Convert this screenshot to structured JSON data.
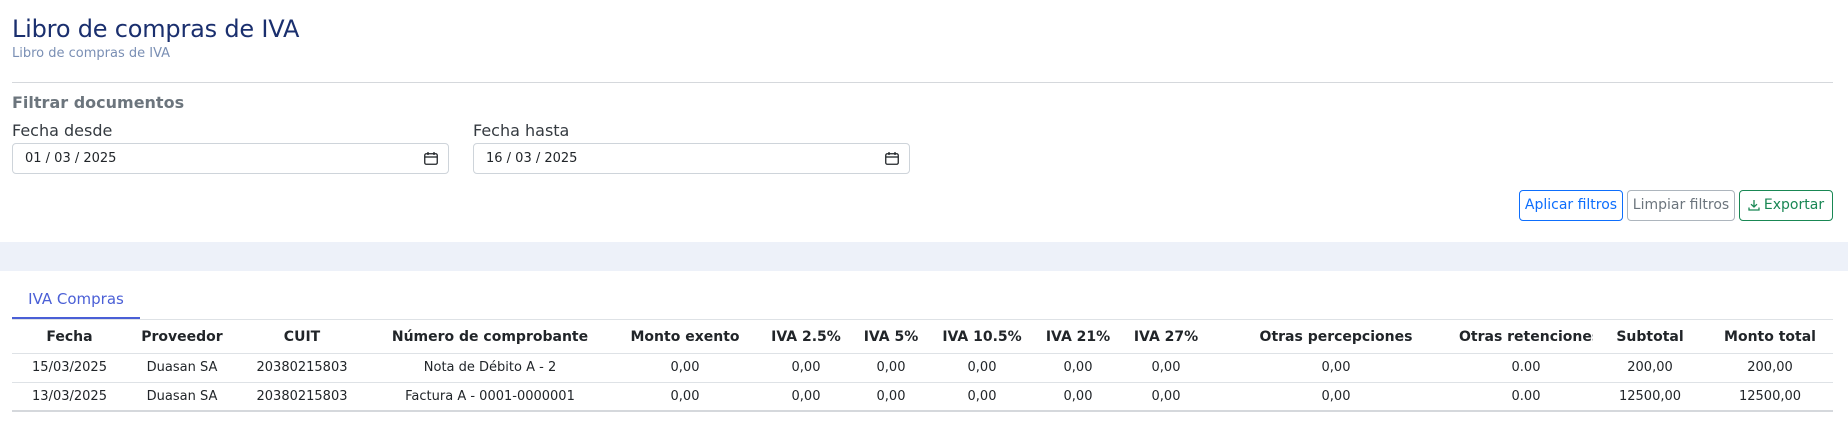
{
  "header": {
    "title": "Libro de compras de IVA",
    "subtitle": "Libro de compras de IVA"
  },
  "filters": {
    "title": "Filtrar documentos",
    "date_from_label": "Fecha desde",
    "date_from_value": "01 / 03 / 2025",
    "date_to_label": "Fecha hasta",
    "date_to_value": "16 / 03 / 2025",
    "apply_label": "Aplicar filtros",
    "clear_label": "Limpiar filtros",
    "export_label": "Exportar"
  },
  "tabs": [
    {
      "label": "IVA Compras",
      "active": true
    }
  ],
  "table": {
    "columns": [
      "Fecha",
      "Proveedor",
      "CUIT",
      "Número de comprobante",
      "Monto exento",
      "IVA 2.5%",
      "IVA 5%",
      "IVA 10.5%",
      "IVA 21%",
      "IVA 27%",
      "Otras percepciones",
      "Otras retenciones",
      "Subtotal",
      "Monto total"
    ],
    "rows": [
      [
        "15/03/2025",
        "Duasan SA",
        "20380215803",
        "Nota de Débito A - 2",
        "0,00",
        "0,00",
        "0,00",
        "0,00",
        "0,00",
        "0,00",
        "0,00",
        "0.00",
        "200,00",
        "200,00"
      ],
      [
        "13/03/2025",
        "Duasan SA",
        "20380215803",
        "Factura A - 0001-0000001",
        "0,00",
        "0,00",
        "0,00",
        "0,00",
        "0,00",
        "0,00",
        "0,00",
        "0.00",
        "12500,00",
        "12500,00"
      ]
    ]
  },
  "colors": {
    "title": "#1a2f6e",
    "accent": "#4a5fd6",
    "apply": "#0d6efd",
    "export": "#198754",
    "band": "#edf1f9"
  }
}
